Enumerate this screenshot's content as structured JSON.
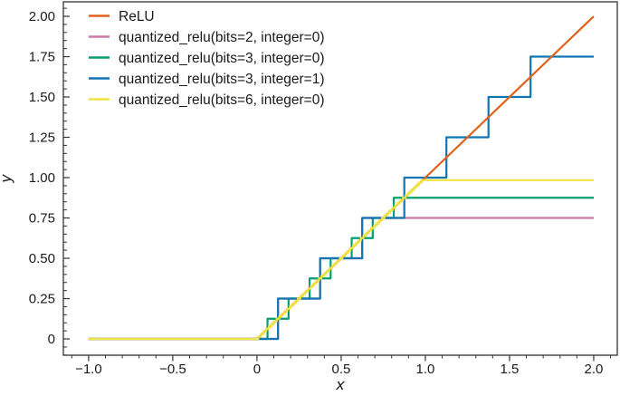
{
  "figure": {
    "background": "#ffffff",
    "axis_color": "#333333",
    "text_color": "#1a1a1a"
  },
  "chart_data": {
    "type": "line",
    "title": "",
    "xlabel": "x",
    "ylabel": "y",
    "xlim": [
      -1.15,
      2.14
    ],
    "ylim": [
      -0.101,
      2.09
    ],
    "x_data_range": [
      -1,
      2
    ],
    "grid": false,
    "legend_position": "upper-left",
    "legend_frame": false,
    "x_ticks": {
      "values": [
        -1.0,
        -0.5,
        0,
        0.5,
        1.0,
        1.5,
        2.0
      ],
      "labels": [
        "−1.0",
        "−0.5",
        "0",
        "0.5",
        "1.0",
        "1.5",
        "2.0"
      ],
      "minor_step": 0.1,
      "direction": "out"
    },
    "y_ticks": {
      "values": [
        0,
        0.25,
        0.5,
        0.75,
        1.0,
        1.25,
        1.5,
        1.75,
        2.0
      ],
      "labels": [
        "0",
        "0.25",
        "0.50",
        "0.75",
        "1.00",
        "1.25",
        "1.50",
        "1.75",
        "2.00"
      ],
      "minor_step": 0.05,
      "direction": "in"
    },
    "series": [
      {
        "name": "ReLU",
        "color": "#e0611a",
        "kind": "relu",
        "points": [
          [
            -1,
            0
          ],
          [
            0,
            0
          ],
          [
            2,
            2
          ]
        ],
        "zorder": 4
      },
      {
        "name": "quantized_relu(bits=2, integer=0)",
        "color": "#cc79a7",
        "kind": "staircase",
        "bits": 2,
        "integer": 0,
        "step": 0.25,
        "max": 0.75,
        "first_jump_x": 0.125,
        "saturation_start_x": 0.625,
        "zorder": 1
      },
      {
        "name": "quantized_relu(bits=3, integer=0)",
        "color": "#009e73",
        "kind": "staircase",
        "bits": 3,
        "integer": 0,
        "step": 0.125,
        "max": 0.875,
        "first_jump_x": 0.0625,
        "saturation_start_x": 0.8125,
        "zorder": 2
      },
      {
        "name": "quantized_relu(bits=3, integer=1)",
        "color": "#1075b2",
        "kind": "staircase",
        "bits": 3,
        "integer": 1,
        "step": 0.25,
        "max": 1.75,
        "first_jump_x": 0.125,
        "saturation_start_x": 1.625,
        "zorder": 3
      },
      {
        "name": "quantized_relu(bits=6, integer=0)",
        "color": "#f0e442",
        "kind": "staircase",
        "bits": 6,
        "integer": 0,
        "step": 0.015625,
        "max": 0.984375,
        "first_jump_x": 0.0078125,
        "saturation_start_x": 0.9765625,
        "zorder": 5
      }
    ]
  }
}
